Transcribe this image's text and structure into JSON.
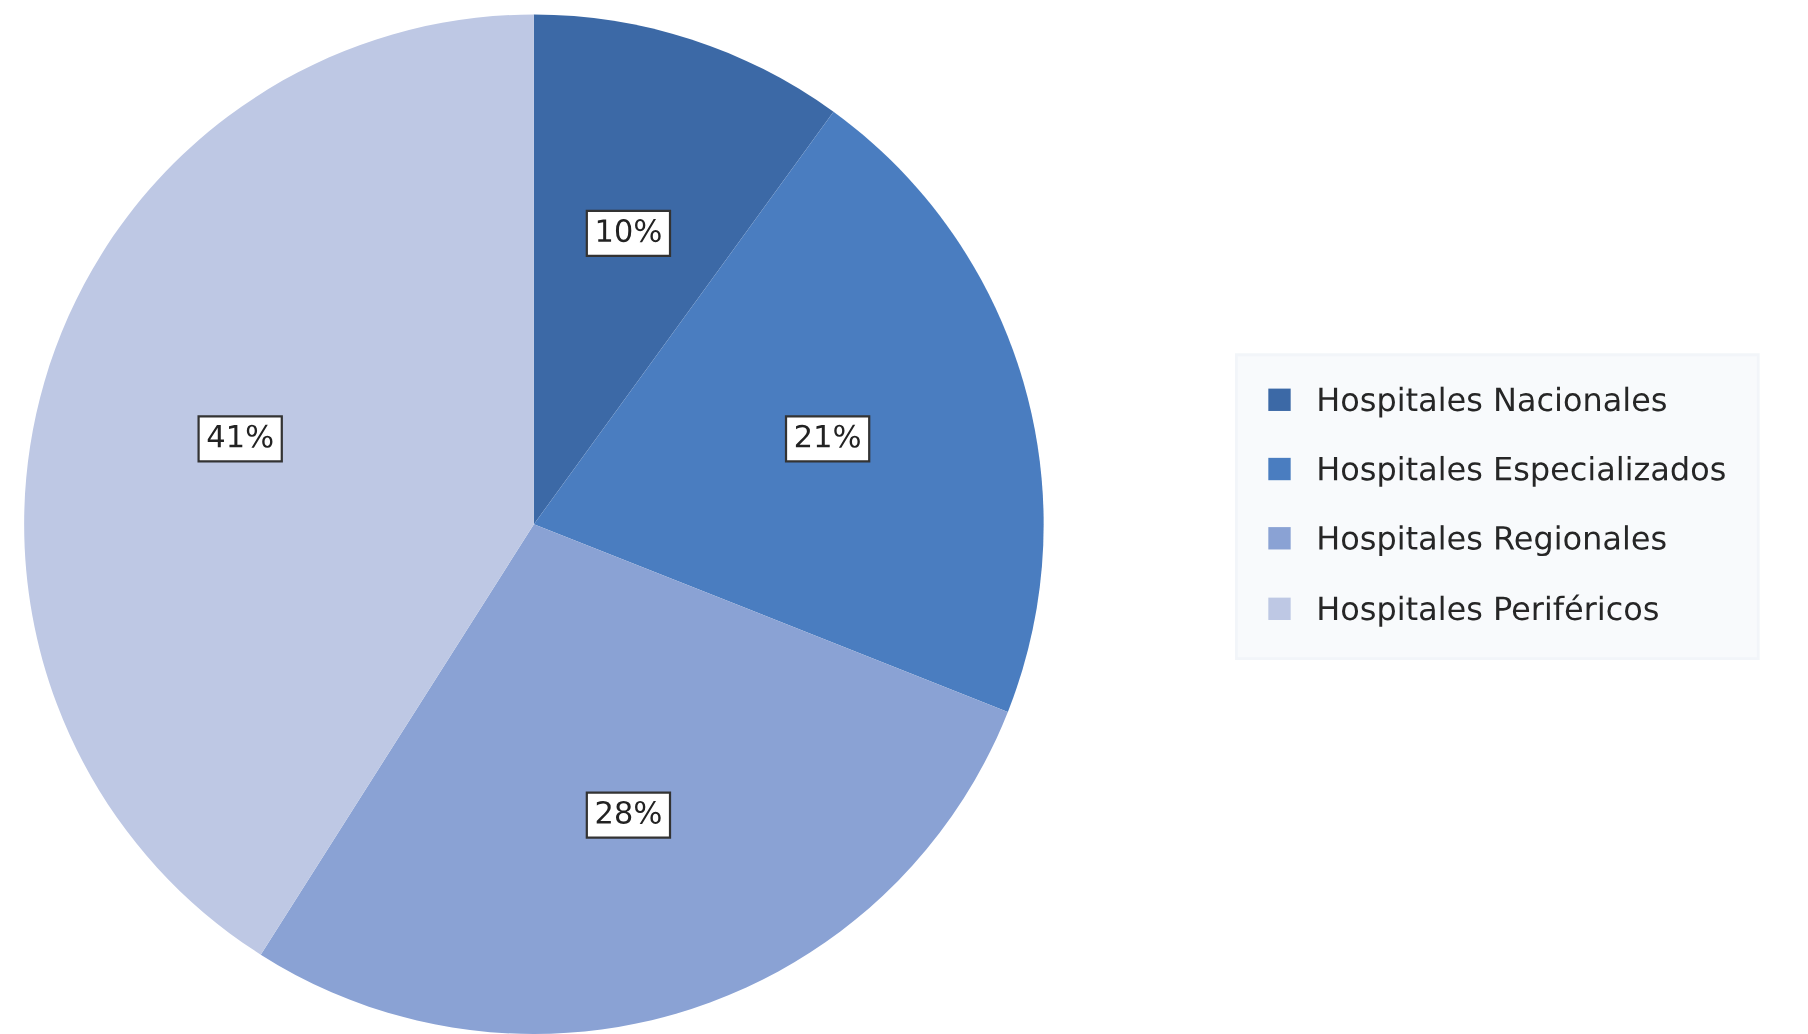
{
  "chart_data": {
    "type": "pie",
    "categories": [
      "Hospitales Nacionales",
      "Hospitales Especializados",
      "Hospitales Regionales",
      "Hospitales Periféricos"
    ],
    "values": [
      10,
      21,
      28,
      41
    ],
    "colors": [
      "#3c69a6",
      "#4a7dc0",
      "#8aa2d4",
      "#bec8e4"
    ],
    "value_labels": [
      "10%",
      "21%",
      "28%",
      "41%"
    ],
    "legend": "right"
  }
}
